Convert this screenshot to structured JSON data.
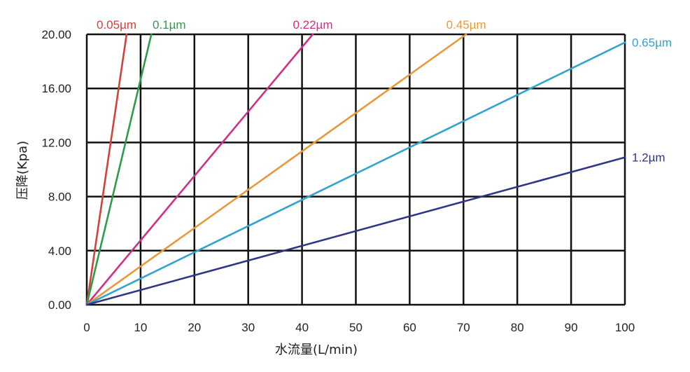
{
  "chart_data": {
    "type": "line",
    "title": "",
    "xlabel": "水流量(L/min)",
    "ylabel": "压降(Kpa)",
    "xlim": [
      0,
      100
    ],
    "ylim": [
      0,
      20
    ],
    "x_ticks": [
      "0",
      "10",
      "20",
      "30",
      "40",
      "50",
      "60",
      "70",
      "80",
      "90",
      "100"
    ],
    "y_ticks": [
      "0.00",
      "4.00",
      "8.00",
      "12.00",
      "16.00",
      "20.00"
    ],
    "grid": true,
    "series": [
      {
        "name": "0.05µm",
        "color": "#d2413a",
        "points": [
          [
            0,
            0
          ],
          [
            7.4,
            20.0
          ]
        ]
      },
      {
        "name": "0.1µm",
        "color": "#2e9a4c",
        "points": [
          [
            0,
            0
          ],
          [
            12.0,
            20.0
          ]
        ]
      },
      {
        "name": "0.22µm",
        "color": "#cf2f84",
        "points": [
          [
            0,
            0
          ],
          [
            42.0,
            20.0
          ]
        ]
      },
      {
        "name": "0.45µm",
        "color": "#e8993b",
        "points": [
          [
            0,
            0
          ],
          [
            70.5,
            20.0
          ]
        ]
      },
      {
        "name": "0.65µm",
        "color": "#31a3cf",
        "points": [
          [
            0,
            0
          ],
          [
            100,
            19.4
          ]
        ]
      },
      {
        "name": "1.2µm",
        "color": "#2e3586",
        "points": [
          [
            0,
            0
          ],
          [
            100,
            10.9
          ]
        ]
      }
    ]
  }
}
